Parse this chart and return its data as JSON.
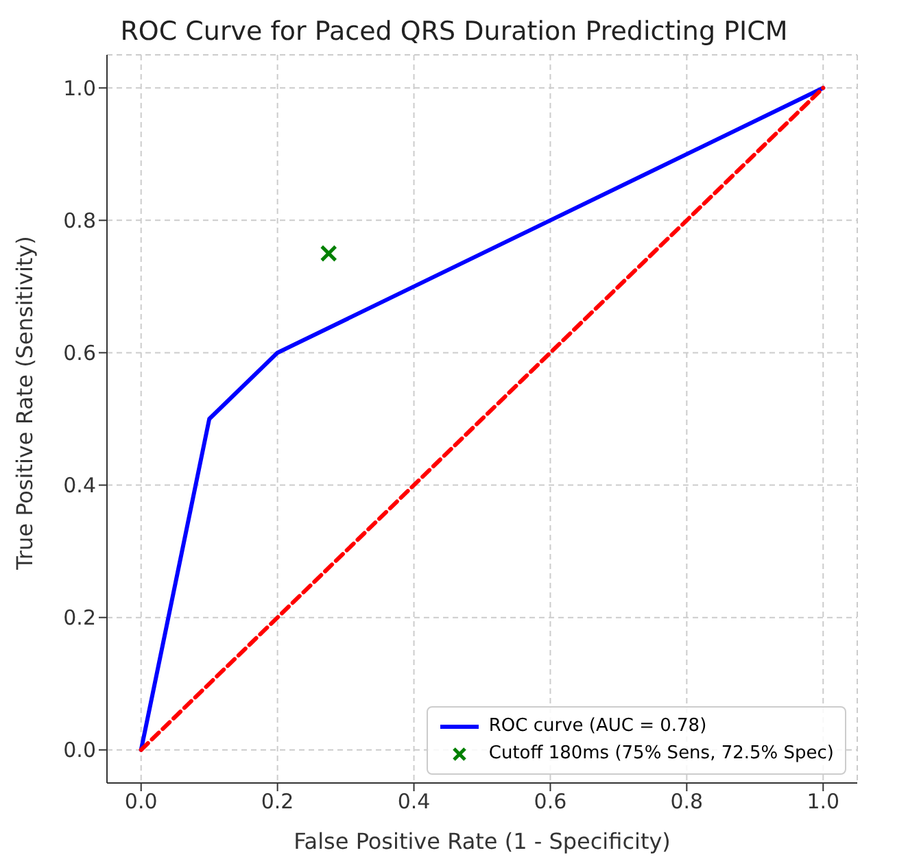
{
  "chart_data": {
    "type": "line",
    "title": "ROC Curve for Paced QRS Duration Predicting PICM",
    "xlabel": "False Positive Rate (1 - Specificity)",
    "ylabel": "True Positive Rate (Sensitivity)",
    "series": [
      {
        "name": "ROC curve (AUC = 0.78)",
        "color": "#0000ff",
        "x": [
          0,
          0.1,
          0.2,
          1
        ],
        "values": [
          0,
          0.5,
          0.6,
          1
        ],
        "line_style": "solid",
        "marker": "none"
      },
      {
        "color": "#ff0000",
        "x": [
          0,
          1
        ],
        "values": [
          0,
          1
        ],
        "line_style": "dashed",
        "marker": "none"
      },
      {
        "name": "Cutoff 180ms (75% Sens, 72.5% Spec)",
        "type": "scatter",
        "color": "#008000",
        "x": [
          0.275
        ],
        "values": [
          0.75
        ],
        "marker": "cross"
      }
    ],
    "xlim": [
      -0.05,
      1.05
    ],
    "ylim": [
      -0.05,
      1.05
    ],
    "xticks": [
      {
        "value": 0,
        "label": "0.0"
      },
      {
        "value": 0.2,
        "label": "0.2"
      },
      {
        "value": 0.4,
        "label": "0.4"
      },
      {
        "value": 0.6,
        "label": "0.6"
      },
      {
        "value": 0.8,
        "label": "0.8"
      },
      {
        "value": 1,
        "label": "1.0"
      }
    ],
    "yticks": [
      {
        "value": 0,
        "label": "0.0"
      },
      {
        "value": 0.2,
        "label": "0.2"
      },
      {
        "value": 0.4,
        "label": "0.4"
      },
      {
        "value": 0.6,
        "label": "0.6"
      },
      {
        "value": 0.8,
        "label": "0.8"
      },
      {
        "value": 1,
        "label": "1.0"
      }
    ],
    "grid": true,
    "legend": "bottom right"
  }
}
